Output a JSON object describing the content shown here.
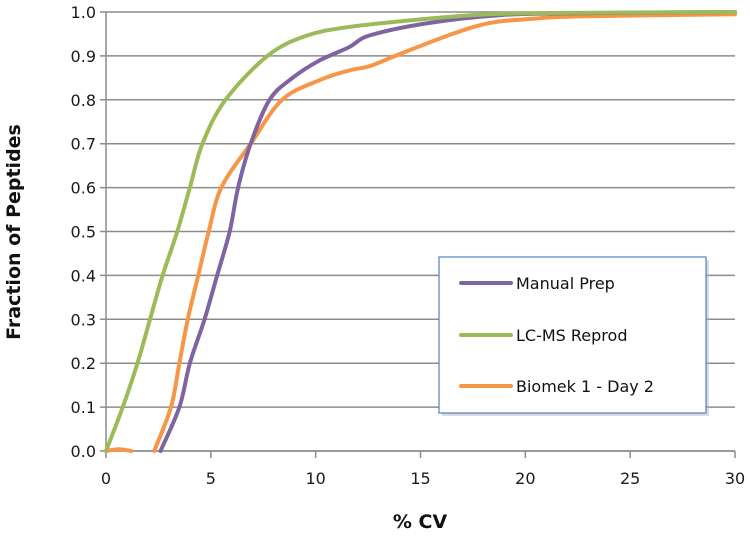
{
  "chart_data": {
    "type": "line",
    "title": "",
    "xlabel": "% CV",
    "ylabel": "Fraction of Peptides",
    "xlim": [
      0,
      30
    ],
    "ylim": [
      0,
      1.0
    ],
    "xticks": [
      "0",
      "5",
      "10",
      "15",
      "20",
      "25",
      "30"
    ],
    "xtick_values": [
      0,
      5,
      10,
      15,
      20,
      25,
      30
    ],
    "yticks": [
      "0.0",
      "0.1",
      "0.2",
      "0.3",
      "0.4",
      "0.5",
      "0.6",
      "0.7",
      "0.8",
      "0.9",
      "1.0"
    ],
    "ytick_values": [
      0,
      0.1,
      0.2,
      0.3,
      0.4,
      0.5,
      0.6,
      0.7,
      0.8,
      0.9,
      1.0
    ],
    "grid": "horizontal",
    "legend_position": "lower-right",
    "series": [
      {
        "name": "Manual Prep",
        "color": "#8064A2",
        "x": [
          2.6,
          3.5,
          4.0,
          4.7,
          5.3,
          5.9,
          6.3,
          6.9,
          7.8,
          8.9,
          10.2,
          11.6,
          12.6,
          15.4,
          18.8,
          22,
          30
        ],
        "y": [
          0.0,
          0.1,
          0.2,
          0.3,
          0.4,
          0.5,
          0.6,
          0.7,
          0.8,
          0.85,
          0.89,
          0.92,
          0.947,
          0.975,
          0.993,
          0.997,
          1.0
        ]
      },
      {
        "name": "LC-MS Reprod",
        "color": "#9BBB59",
        "x": [
          0,
          0.8,
          1.5,
          2.1,
          2.7,
          3.4,
          4.0,
          4.6,
          5.7,
          7.7,
          9.5,
          11.6,
          15.4,
          18.3,
          22,
          30
        ],
        "y": [
          0.0,
          0.1,
          0.2,
          0.3,
          0.4,
          0.5,
          0.6,
          0.7,
          0.8,
          0.9,
          0.945,
          0.966,
          0.985,
          0.995,
          0.998,
          1.0
        ]
      },
      {
        "name": "Biomek 1 - Day 2",
        "color": "#F79646",
        "x": [
          2.3,
          3.1,
          3.5,
          3.9,
          4.4,
          4.9,
          5.5,
          6.9,
          8.4,
          10.2,
          11.6,
          12.6,
          14.0,
          16.4,
          18.3,
          20.2,
          22.6,
          30
        ],
        "y": [
          0.0,
          0.1,
          0.2,
          0.3,
          0.4,
          0.5,
          0.6,
          0.7,
          0.8,
          0.845,
          0.867,
          0.877,
          0.904,
          0.948,
          0.975,
          0.984,
          0.99,
          0.995
        ]
      }
    ],
    "extra_segment": {
      "series": "Biomek 1 - Day 2",
      "x": [
        0,
        0.6,
        1.2
      ],
      "y": [
        0.0,
        0.004,
        0.0
      ]
    }
  }
}
